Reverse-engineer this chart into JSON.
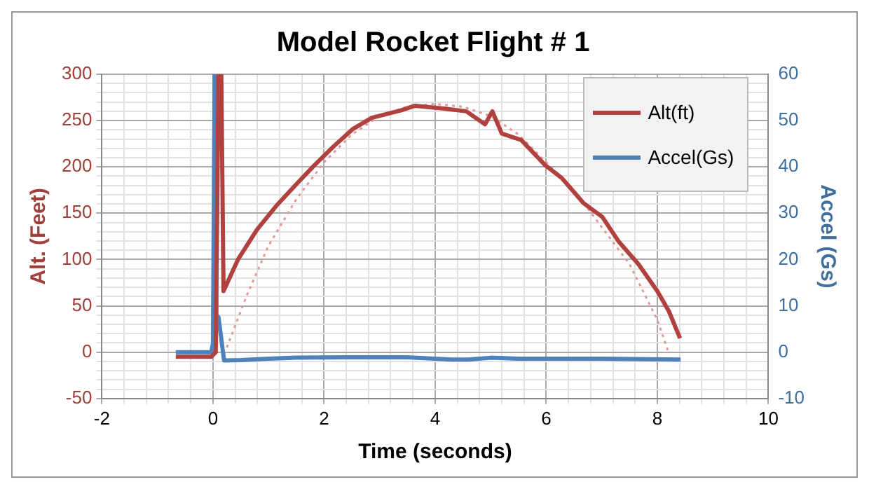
{
  "chart_data": {
    "type": "line",
    "title": "Model Rocket Flight # 1",
    "xlabel": "Time (seconds)",
    "ylabel": "Alt. (Feet)",
    "y2label": "Accel (Gs)",
    "xlim": [
      -2,
      10
    ],
    "xticks": [
      -2,
      {
        "value": -1.6,
        "label": null
      },
      {
        "value": -1.2,
        "label": null
      },
      {
        "value": -0.8,
        "label": null
      },
      {
        "value": -0.4,
        "label": null
      },
      0,
      {
        "value": 0.4,
        "label": null
      },
      {
        "value": 0.8,
        "label": null
      },
      {
        "value": 1.2,
        "label": null
      },
      {
        "value": 1.6,
        "label": null
      },
      2,
      {
        "value": 2.4,
        "label": null
      },
      {
        "value": 2.8,
        "label": null
      },
      {
        "value": 3.2,
        "label": null
      },
      {
        "value": 3.6,
        "label": null
      },
      4,
      {
        "value": 4.4,
        "label": null
      },
      {
        "value": 4.8,
        "label": null
      },
      {
        "value": 5.2,
        "label": null
      },
      {
        "value": 5.6,
        "label": null
      },
      6,
      {
        "value": 6.4,
        "label": null
      },
      {
        "value": 6.8,
        "label": null
      },
      {
        "value": 7.2,
        "label": null
      },
      {
        "value": 7.6,
        "label": null
      },
      8,
      {
        "value": 8.4,
        "label": null
      },
      {
        "value": 8.8,
        "label": null
      },
      {
        "value": 9.2,
        "label": null
      },
      {
        "value": 9.6,
        "label": null
      },
      10
    ],
    "ylim": [
      -50,
      300
    ],
    "yticks": [
      -50,
      {
        "value": -40,
        "label": null
      },
      {
        "value": -30,
        "label": null
      },
      {
        "value": -20,
        "label": null
      },
      {
        "value": -10,
        "label": null
      },
      0,
      {
        "value": 10,
        "label": null
      },
      {
        "value": 20,
        "label": null
      },
      {
        "value": 30,
        "label": null
      },
      {
        "value": 40,
        "label": null
      },
      50,
      {
        "value": 60,
        "label": null
      },
      {
        "value": 70,
        "label": null
      },
      {
        "value": 80,
        "label": null
      },
      {
        "value": 90,
        "label": null
      },
      100,
      {
        "value": 110,
        "label": null
      },
      {
        "value": 120,
        "label": null
      },
      {
        "value": 130,
        "label": null
      },
      {
        "value": 140,
        "label": null
      },
      150,
      {
        "value": 160,
        "label": null
      },
      {
        "value": 170,
        "label": null
      },
      {
        "value": 180,
        "label": null
      },
      {
        "value": 190,
        "label": null
      },
      200,
      {
        "value": 210,
        "label": null
      },
      {
        "value": 220,
        "label": null
      },
      {
        "value": 230,
        "label": null
      },
      {
        "value": 240,
        "label": null
      },
      250,
      {
        "value": 260,
        "label": null
      },
      {
        "value": 270,
        "label": null
      },
      {
        "value": 280,
        "label": null
      },
      {
        "value": 290,
        "label": null
      },
      300
    ],
    "y2lim": [
      -10,
      60
    ],
    "y2ticks": [
      -10,
      0,
      10,
      20,
      30,
      40,
      50,
      60
    ],
    "grid": true,
    "legend": "top right",
    "marker": "none",
    "series": [
      {
        "name": "Alt(ft)",
        "color": "#b0413e",
        "x": [
          -0.67,
          -0.3,
          -0.03,
          0.05,
          0.1,
          0.15,
          0.19,
          0.45,
          0.79,
          1.14,
          1.48,
          1.83,
          2.17,
          2.52,
          2.86,
          3.38,
          3.64,
          4.16,
          4.56,
          4.9,
          5.03,
          5.2,
          5.55,
          5.98,
          6.28,
          6.67,
          7.01,
          7.31,
          7.66,
          8.0,
          8.21,
          8.41
        ],
        "values": [
          -5,
          -5,
          -5,
          0,
          300,
          300,
          66,
          100,
          132,
          158,
          180,
          202,
          222,
          241,
          253,
          261,
          266,
          263,
          260,
          246,
          260,
          236,
          229,
          202,
          188,
          161,
          146,
          119,
          95,
          66,
          44,
          15
        ]
      },
      {
        "name": "Accel(Gs)",
        "color": "#4f81bd",
        "axis": "y2",
        "x": [
          -0.67,
          -0.03,
          0.0,
          0.03,
          0.06,
          0.1,
          0.2,
          0.5,
          1.0,
          1.5,
          2.4,
          3.5,
          4.3,
          4.6,
          5.0,
          5.5,
          7.0,
          8.42
        ],
        "values": [
          0,
          0,
          2,
          60,
          8,
          7.5,
          -1.8,
          -1.7,
          -1.4,
          -1.2,
          -1.1,
          -1.1,
          -1.6,
          -1.6,
          -1.2,
          -1.4,
          -1.4,
          -1.6
        ]
      },
      {
        "type": "line",
        "color": "#e09a98",
        "line_style": "dotted",
        "x": [
          0.25,
          0.6,
          1.0,
          1.5,
          2.0,
          2.5,
          3.0,
          3.5,
          4.0,
          4.5,
          5.0,
          5.5,
          6.0,
          6.5,
          7.0,
          7.5,
          8.0,
          8.2
        ],
        "values": [
          5,
          60,
          115,
          165,
          205,
          235,
          255,
          265,
          268,
          265,
          255,
          235,
          205,
          175,
          135,
          95,
          35,
          0
        ]
      }
    ]
  }
}
